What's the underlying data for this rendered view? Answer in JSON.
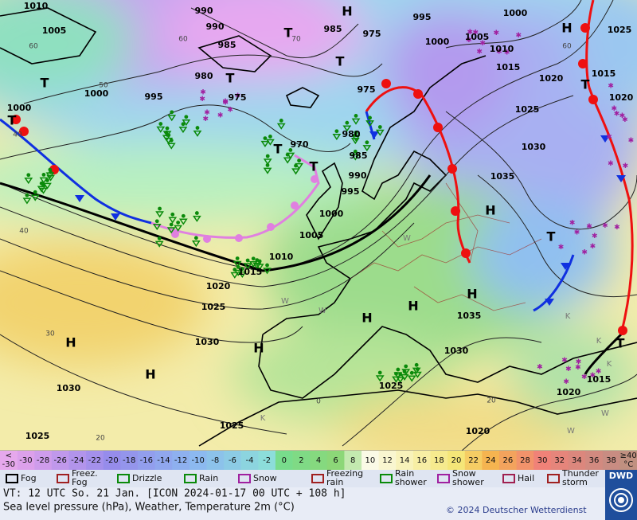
{
  "map": {
    "isobar_labels": [
      1010,
      1005,
      990,
      990,
      985,
      985,
      975,
      995,
      1000,
      1005,
      1000,
      1010,
      1015,
      1020,
      1025,
      1015,
      1020,
      1025,
      1030,
      1035,
      1000,
      1000,
      995,
      980,
      975,
      975,
      980,
      970,
      985,
      990,
      995,
      1000,
      1005,
      1010,
      1015,
      1020,
      1025,
      1030,
      1030,
      1025,
      1025,
      1025,
      1030,
      1035,
      1020,
      1020,
      1015
    ],
    "pressure_centres": [
      "H",
      "T",
      "T",
      "T",
      "T",
      "T",
      "H",
      "T",
      "T",
      "T",
      "H",
      "T",
      "H",
      "H",
      "H",
      "H",
      "H",
      "H",
      "T"
    ],
    "temperature_labels": [
      "60",
      "70",
      "60",
      "50",
      "40",
      "40",
      "30",
      "20",
      "20",
      "0",
      "60"
    ],
    "ice_labels": [
      "W",
      "W",
      "W",
      "W",
      "W",
      "K",
      "K",
      "K",
      "K"
    ]
  },
  "temperature_scale": {
    "low_label": {
      "top": "<",
      "bottom": "-30"
    },
    "values": [
      -30,
      -28,
      -26,
      -24,
      -22,
      -20,
      -18,
      -16,
      -14,
      -12,
      -10,
      -8,
      -6,
      -4,
      -2,
      0,
      2,
      4,
      6,
      8,
      10,
      12,
      14,
      16,
      18,
      20,
      22,
      24,
      26,
      28,
      30,
      32,
      34,
      36,
      38
    ],
    "high_label": {
      "top": "≥40",
      "bottom": "°C"
    }
  },
  "weather_legend": [
    "Fog",
    "Freez. Fog",
    "Drizzle",
    "Rain",
    "Snow",
    "Freezing rain",
    "Rain shower",
    "Snow shower",
    "Hail",
    "Thunder storm"
  ],
  "footer": {
    "valid_time": "VT: 12 UTC So.  21 Jan. [ICON 2024-01-17  00 UTC + 108 h]",
    "description": "Sea level pressure (hPa), Weather, Temperature 2m (°C)",
    "copyright": "© 2024 Deutscher Wetterdienst",
    "logo": "DWD"
  }
}
